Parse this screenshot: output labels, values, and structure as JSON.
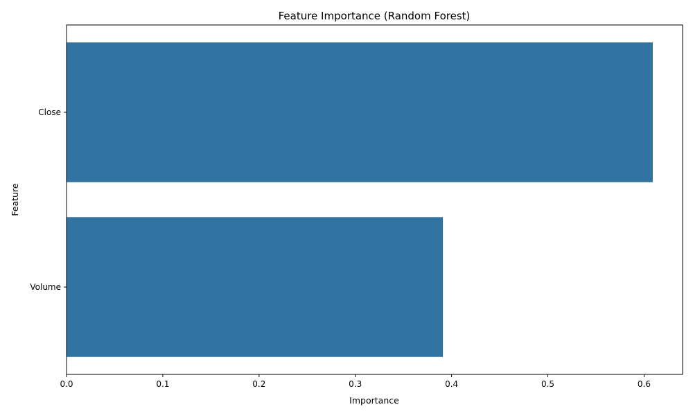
{
  "chart_data": {
    "type": "bar",
    "orientation": "horizontal",
    "title": "Feature Importance (Random Forest)",
    "xlabel": "Importance",
    "ylabel": "Feature",
    "categories": [
      "Close",
      "Volume"
    ],
    "values": [
      0.609,
      0.391
    ],
    "xlim": [
      0,
      0.64
    ],
    "xticks": [
      0.0,
      0.1,
      0.2,
      0.3,
      0.4,
      0.5,
      0.6
    ],
    "xtick_labels": [
      "0.0",
      "0.1",
      "0.2",
      "0.3",
      "0.4",
      "0.5",
      "0.6"
    ],
    "bar_color": "#3274a1",
    "grid": false,
    "legend": "none"
  }
}
